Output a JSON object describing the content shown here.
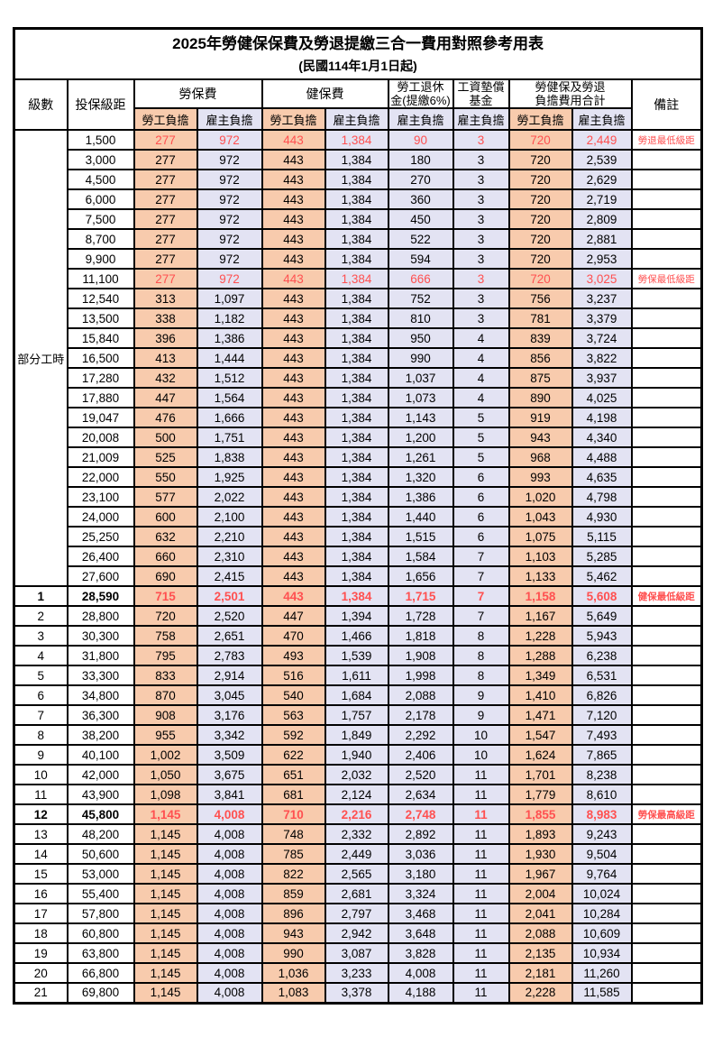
{
  "page": {
    "title": "2025年勞健保保費及勞退提繳三合一費用對照參考用表",
    "subtitle": "(民國114年1月1日起)"
  },
  "header": {
    "level": "級數",
    "bracket": "投保級距",
    "labor_insurance": "勞保費",
    "health_insurance": "健保費",
    "pension_line1": "勞工退休",
    "pension_line2": "金(提繳6%)",
    "wage_fund_line1": "工資墊償",
    "wage_fund_line2": "基金",
    "total_line1": "勞健保及勞退",
    "total_line2": "負擔費用合計",
    "remark": "備註",
    "employee_burden": "勞工負擔",
    "employer_burden": "雇主負擔"
  },
  "colors": {
    "employee_bg": "#F8CBAD",
    "employer_bg": "#E3E3F3",
    "highlight_text": "#FF5050",
    "grid": "#000000"
  },
  "table": {
    "part_time_label": "部分工時",
    "part_time_rowspan": 23,
    "value_col_types": [
      "emp",
      "er",
      "emp",
      "er",
      "er",
      "er",
      "emp",
      "er"
    ],
    "rows": [
      {
        "lv": "",
        "br": "1,500",
        "v": [
          "277",
          "972",
          "443",
          "1,384",
          "90",
          "3",
          "720",
          "2,449"
        ],
        "rm": "勞退最低級距",
        "hl": true,
        "b": false
      },
      {
        "lv": "",
        "br": "3,000",
        "v": [
          "277",
          "972",
          "443",
          "1,384",
          "180",
          "3",
          "720",
          "2,539"
        ],
        "rm": "",
        "hl": false,
        "b": false
      },
      {
        "lv": "",
        "br": "4,500",
        "v": [
          "277",
          "972",
          "443",
          "1,384",
          "270",
          "3",
          "720",
          "2,629"
        ],
        "rm": "",
        "hl": false,
        "b": false
      },
      {
        "lv": "",
        "br": "6,000",
        "v": [
          "277",
          "972",
          "443",
          "1,384",
          "360",
          "3",
          "720",
          "2,719"
        ],
        "rm": "",
        "hl": false,
        "b": false
      },
      {
        "lv": "",
        "br": "7,500",
        "v": [
          "277",
          "972",
          "443",
          "1,384",
          "450",
          "3",
          "720",
          "2,809"
        ],
        "rm": "",
        "hl": false,
        "b": false
      },
      {
        "lv": "",
        "br": "8,700",
        "v": [
          "277",
          "972",
          "443",
          "1,384",
          "522",
          "3",
          "720",
          "2,881"
        ],
        "rm": "",
        "hl": false,
        "b": false
      },
      {
        "lv": "",
        "br": "9,900",
        "v": [
          "277",
          "972",
          "443",
          "1,384",
          "594",
          "3",
          "720",
          "2,953"
        ],
        "rm": "",
        "hl": false,
        "b": false
      },
      {
        "lv": "",
        "br": "11,100",
        "v": [
          "277",
          "972",
          "443",
          "1,384",
          "666",
          "3",
          "720",
          "3,025"
        ],
        "rm": "勞保最低級距",
        "hl": true,
        "b": false
      },
      {
        "lv": "",
        "br": "12,540",
        "v": [
          "313",
          "1,097",
          "443",
          "1,384",
          "752",
          "3",
          "756",
          "3,237"
        ],
        "rm": "",
        "hl": false,
        "b": false
      },
      {
        "lv": "",
        "br": "13,500",
        "v": [
          "338",
          "1,182",
          "443",
          "1,384",
          "810",
          "3",
          "781",
          "3,379"
        ],
        "rm": "",
        "hl": false,
        "b": false
      },
      {
        "lv": "",
        "br": "15,840",
        "v": [
          "396",
          "1,386",
          "443",
          "1,384",
          "950",
          "4",
          "839",
          "3,724"
        ],
        "rm": "",
        "hl": false,
        "b": false
      },
      {
        "lv": "",
        "br": "16,500",
        "v": [
          "413",
          "1,444",
          "443",
          "1,384",
          "990",
          "4",
          "856",
          "3,822"
        ],
        "rm": "",
        "hl": false,
        "b": false
      },
      {
        "lv": "",
        "br": "17,280",
        "v": [
          "432",
          "1,512",
          "443",
          "1,384",
          "1,037",
          "4",
          "875",
          "3,937"
        ],
        "rm": "",
        "hl": false,
        "b": false
      },
      {
        "lv": "",
        "br": "17,880",
        "v": [
          "447",
          "1,564",
          "443",
          "1,384",
          "1,073",
          "4",
          "890",
          "4,025"
        ],
        "rm": "",
        "hl": false,
        "b": false
      },
      {
        "lv": "",
        "br": "19,047",
        "v": [
          "476",
          "1,666",
          "443",
          "1,384",
          "1,143",
          "5",
          "919",
          "4,198"
        ],
        "rm": "",
        "hl": false,
        "b": false
      },
      {
        "lv": "",
        "br": "20,008",
        "v": [
          "500",
          "1,751",
          "443",
          "1,384",
          "1,200",
          "5",
          "943",
          "4,340"
        ],
        "rm": "",
        "hl": false,
        "b": false
      },
      {
        "lv": "",
        "br": "21,009",
        "v": [
          "525",
          "1,838",
          "443",
          "1,384",
          "1,261",
          "5",
          "968",
          "4,488"
        ],
        "rm": "",
        "hl": false,
        "b": false
      },
      {
        "lv": "",
        "br": "22,000",
        "v": [
          "550",
          "1,925",
          "443",
          "1,384",
          "1,320",
          "6",
          "993",
          "4,635"
        ],
        "rm": "",
        "hl": false,
        "b": false
      },
      {
        "lv": "",
        "br": "23,100",
        "v": [
          "577",
          "2,022",
          "443",
          "1,384",
          "1,386",
          "6",
          "1,020",
          "4,798"
        ],
        "rm": "",
        "hl": false,
        "b": false
      },
      {
        "lv": "",
        "br": "24,000",
        "v": [
          "600",
          "2,100",
          "443",
          "1,384",
          "1,440",
          "6",
          "1,043",
          "4,930"
        ],
        "rm": "",
        "hl": false,
        "b": false
      },
      {
        "lv": "",
        "br": "25,250",
        "v": [
          "632",
          "2,210",
          "443",
          "1,384",
          "1,515",
          "6",
          "1,075",
          "5,115"
        ],
        "rm": "",
        "hl": false,
        "b": false
      },
      {
        "lv": "",
        "br": "26,400",
        "v": [
          "660",
          "2,310",
          "443",
          "1,384",
          "1,584",
          "7",
          "1,103",
          "5,285"
        ],
        "rm": "",
        "hl": false,
        "b": false
      },
      {
        "lv": "",
        "br": "27,600",
        "v": [
          "690",
          "2,415",
          "443",
          "1,384",
          "1,656",
          "7",
          "1,133",
          "5,462"
        ],
        "rm": "",
        "hl": false,
        "b": false
      },
      {
        "lv": "1",
        "br": "28,590",
        "v": [
          "715",
          "2,501",
          "443",
          "1,384",
          "1,715",
          "7",
          "1,158",
          "5,608"
        ],
        "rm": "健保最低級距",
        "hl": true,
        "b": true
      },
      {
        "lv": "2",
        "br": "28,800",
        "v": [
          "720",
          "2,520",
          "447",
          "1,394",
          "1,728",
          "7",
          "1,167",
          "5,649"
        ],
        "rm": "",
        "hl": false,
        "b": false
      },
      {
        "lv": "3",
        "br": "30,300",
        "v": [
          "758",
          "2,651",
          "470",
          "1,466",
          "1,818",
          "8",
          "1,228",
          "5,943"
        ],
        "rm": "",
        "hl": false,
        "b": false
      },
      {
        "lv": "4",
        "br": "31,800",
        "v": [
          "795",
          "2,783",
          "493",
          "1,539",
          "1,908",
          "8",
          "1,288",
          "6,238"
        ],
        "rm": "",
        "hl": false,
        "b": false
      },
      {
        "lv": "5",
        "br": "33,300",
        "v": [
          "833",
          "2,914",
          "516",
          "1,611",
          "1,998",
          "8",
          "1,349",
          "6,531"
        ],
        "rm": "",
        "hl": false,
        "b": false
      },
      {
        "lv": "6",
        "br": "34,800",
        "v": [
          "870",
          "3,045",
          "540",
          "1,684",
          "2,088",
          "9",
          "1,410",
          "6,826"
        ],
        "rm": "",
        "hl": false,
        "b": false
      },
      {
        "lv": "7",
        "br": "36,300",
        "v": [
          "908",
          "3,176",
          "563",
          "1,757",
          "2,178",
          "9",
          "1,471",
          "7,120"
        ],
        "rm": "",
        "hl": false,
        "b": false
      },
      {
        "lv": "8",
        "br": "38,200",
        "v": [
          "955",
          "3,342",
          "592",
          "1,849",
          "2,292",
          "10",
          "1,547",
          "7,493"
        ],
        "rm": "",
        "hl": false,
        "b": false
      },
      {
        "lv": "9",
        "br": "40,100",
        "v": [
          "1,002",
          "3,509",
          "622",
          "1,940",
          "2,406",
          "10",
          "1,624",
          "7,865"
        ],
        "rm": "",
        "hl": false,
        "b": false
      },
      {
        "lv": "10",
        "br": "42,000",
        "v": [
          "1,050",
          "3,675",
          "651",
          "2,032",
          "2,520",
          "11",
          "1,701",
          "8,238"
        ],
        "rm": "",
        "hl": false,
        "b": false
      },
      {
        "lv": "11",
        "br": "43,900",
        "v": [
          "1,098",
          "3,841",
          "681",
          "2,124",
          "2,634",
          "11",
          "1,779",
          "8,610"
        ],
        "rm": "",
        "hl": false,
        "b": false
      },
      {
        "lv": "12",
        "br": "45,800",
        "v": [
          "1,145",
          "4,008",
          "710",
          "2,216",
          "2,748",
          "11",
          "1,855",
          "8,983"
        ],
        "rm": "勞保最高級距",
        "hl": true,
        "b": true
      },
      {
        "lv": "13",
        "br": "48,200",
        "v": [
          "1,145",
          "4,008",
          "748",
          "2,332",
          "2,892",
          "11",
          "1,893",
          "9,243"
        ],
        "rm": "",
        "hl": false,
        "b": false
      },
      {
        "lv": "14",
        "br": "50,600",
        "v": [
          "1,145",
          "4,008",
          "785",
          "2,449",
          "3,036",
          "11",
          "1,930",
          "9,504"
        ],
        "rm": "",
        "hl": false,
        "b": false
      },
      {
        "lv": "15",
        "br": "53,000",
        "v": [
          "1,145",
          "4,008",
          "822",
          "2,565",
          "3,180",
          "11",
          "1,967",
          "9,764"
        ],
        "rm": "",
        "hl": false,
        "b": false
      },
      {
        "lv": "16",
        "br": "55,400",
        "v": [
          "1,145",
          "4,008",
          "859",
          "2,681",
          "3,324",
          "11",
          "2,004",
          "10,024"
        ],
        "rm": "",
        "hl": false,
        "b": false
      },
      {
        "lv": "17",
        "br": "57,800",
        "v": [
          "1,145",
          "4,008",
          "896",
          "2,797",
          "3,468",
          "11",
          "2,041",
          "10,284"
        ],
        "rm": "",
        "hl": false,
        "b": false
      },
      {
        "lv": "18",
        "br": "60,800",
        "v": [
          "1,145",
          "4,008",
          "943",
          "2,942",
          "3,648",
          "11",
          "2,088",
          "10,609"
        ],
        "rm": "",
        "hl": false,
        "b": false
      },
      {
        "lv": "19",
        "br": "63,800",
        "v": [
          "1,145",
          "4,008",
          "990",
          "3,087",
          "3,828",
          "11",
          "2,135",
          "10,934"
        ],
        "rm": "",
        "hl": false,
        "b": false
      },
      {
        "lv": "20",
        "br": "66,800",
        "v": [
          "1,145",
          "4,008",
          "1,036",
          "3,233",
          "4,008",
          "11",
          "2,181",
          "11,260"
        ],
        "rm": "",
        "hl": false,
        "b": false
      },
      {
        "lv": "21",
        "br": "69,800",
        "v": [
          "1,145",
          "4,008",
          "1,083",
          "3,378",
          "4,188",
          "11",
          "2,228",
          "11,585"
        ],
        "rm": "",
        "hl": false,
        "b": false
      }
    ]
  }
}
